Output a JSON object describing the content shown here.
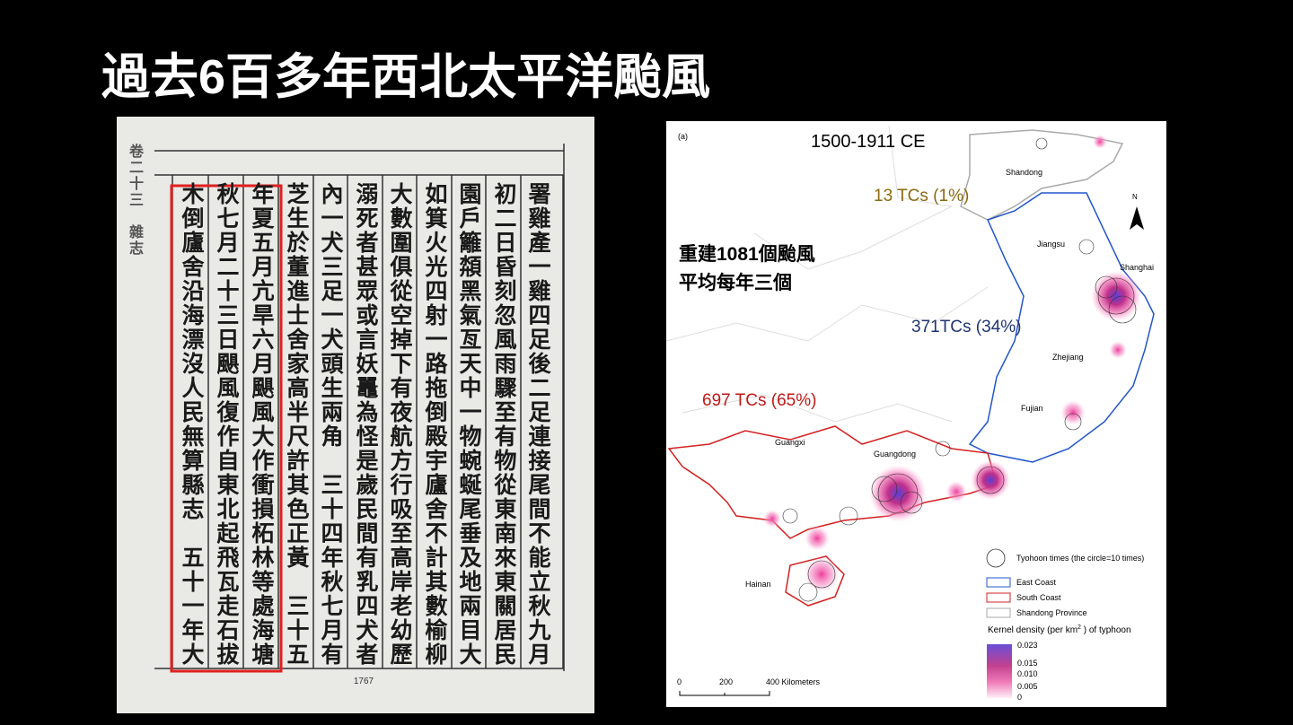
{
  "title": "過去6百多年西北太平洋颱風",
  "document": {
    "columns": [
      "署雞產一雞四足後二足連接尾間不能立秋九月",
      "初二日昏刻忽風雨驟至有物從東南來東關居民",
      "園戶籬頮黑氣亙天中一物蜿蜒尾垂及地兩目大",
      "如箕火光四射一路拖倒殿宇廬舍不計其數榆柳",
      "大數圍俱從空掉下有夜航方行吸至高岸老幼歷",
      "溺死者甚眾或言妖鼉為怪是歲民間有乳四犬者",
      "內一犬三足一犬頭生兩角　三十四年秋七月有",
      "芝生於董進士舍家高半尺許其色正黃　三十五",
      "年夏五月亢旱六月颶風大作衝損柘林等處海塘",
      "秋七月二十三日颶風復作自東北起飛瓦走石拔",
      "木倒廬舍沿海漂沒人民無算縣志　五十一年大"
    ],
    "margin": "卷二十三　雜志",
    "page_number": "1767"
  },
  "map": {
    "panel_label": "(a)",
    "period": "1500-1911 CE",
    "annotation_lines": [
      "重建1081個颱風",
      "平均每年三個"
    ],
    "regions": {
      "shandong": "Shandong",
      "jiangsu": "Jiangsu",
      "shanghai": "Shanghai",
      "zhejiang": "Zhejiang",
      "fujian": "Fujian",
      "guangxi": "Guangxi",
      "guangdong": "Guangdong",
      "hainan": "Hainan"
    },
    "counts": {
      "shandong": "13 TCs (1%)",
      "east": "371TCs (34%)",
      "south": "697 TCs (65%)"
    },
    "north": "N",
    "legend": {
      "circle": "Tyohoon times (the circle=10 times)",
      "east": "East Coast",
      "south": "South Coast",
      "shandong": "Shandong Province",
      "density_title": [
        "Kernel density (per km",
        "2",
        " ) of typhoon"
      ],
      "density_ticks": [
        "0.023",
        "0.015",
        "0.010",
        "0.005",
        "0"
      ]
    },
    "scale": [
      "0",
      "200",
      "400 Kilometers"
    ]
  }
}
